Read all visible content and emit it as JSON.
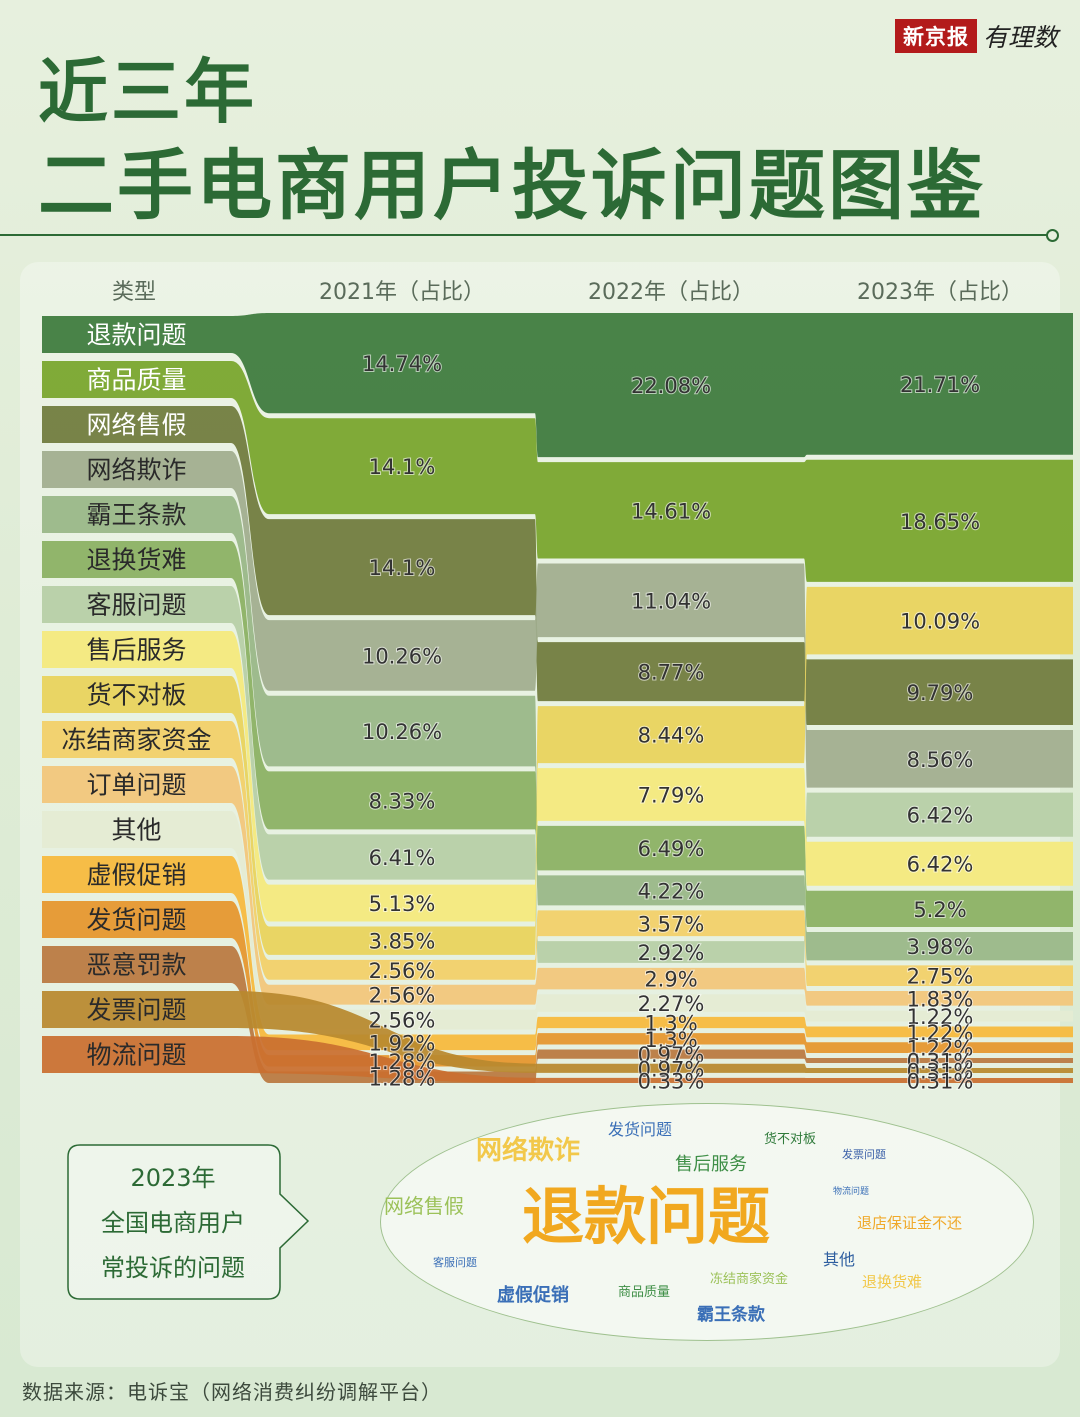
{
  "brand": {
    "name": "新京报",
    "sub": "有理数"
  },
  "title": {
    "line1": "近三年",
    "line2": "二手电商用户投诉问题图鉴"
  },
  "source": "数据来源：电诉宝（网络消费纠纷调解平台）",
  "callout": {
    "line1": "2023年",
    "line2": "全国电商用户",
    "line3": "常投诉的问题"
  },
  "colors": {
    "title": "#2c6a35",
    "accent": "#b31b1b"
  },
  "chart_data": {
    "type": "bump",
    "header": {
      "type_col": "类型",
      "years": [
        "2021年（占比）",
        "2022年（占比）",
        "2023年（占比）"
      ]
    },
    "series": [
      {
        "name": "退款问题",
        "color": "#3c7a3c",
        "values": [
          14.74,
          22.08,
          21.71
        ],
        "labels": [
          "14.74%",
          "22.08%",
          "21.71%"
        ]
      },
      {
        "name": "商品质量",
        "color": "#77a52b",
        "values": [
          14.1,
          14.61,
          18.65
        ],
        "labels": [
          "14.1%",
          "14.61%",
          "18.65%"
        ]
      },
      {
        "name": "网络售假",
        "color": "#6f7b3c",
        "values": [
          14.1,
          8.77,
          9.79
        ],
        "labels": [
          "14.1%",
          "8.77%",
          "9.79%"
        ]
      },
      {
        "name": "网络欺诈",
        "color": "#a0ad8e",
        "values": [
          10.26,
          11.04,
          8.56
        ],
        "labels": [
          "10.26%",
          "11.04%",
          "8.56%"
        ]
      },
      {
        "name": "霸王条款",
        "color": "#98b786",
        "values": [
          10.26,
          4.22,
          3.98
        ],
        "labels": [
          "10.26%",
          "4.22%",
          "3.98%"
        ]
      },
      {
        "name": "退换货难",
        "color": "#8ab062",
        "values": [
          8.33,
          6.49,
          5.2
        ],
        "labels": [
          "8.33%",
          "6.49%",
          "5.2%"
        ]
      },
      {
        "name": "客服问题",
        "color": "#b6cfa6",
        "values": [
          6.41,
          2.92,
          6.42
        ],
        "labels": [
          "6.41%",
          "2.92%",
          "6.42%"
        ]
      },
      {
        "name": "售后服务",
        "color": "#f4e97c",
        "values": [
          5.13,
          7.79,
          6.42
        ],
        "labels": [
          "5.13%",
          "7.79%",
          "6.42%"
        ]
      },
      {
        "name": "货不对板",
        "color": "#e8d35a",
        "values": [
          3.85,
          8.44,
          10.09
        ],
        "labels": [
          "3.85%",
          "8.44%",
          "10.09%"
        ]
      },
      {
        "name": "冻结商家资金",
        "color": "#f2d067",
        "values": [
          2.56,
          3.57,
          2.75
        ],
        "labels": [
          "2.56%",
          "3.57%",
          "2.75%"
        ]
      },
      {
        "name": "订单问题",
        "color": "#f2c67a",
        "values": [
          2.56,
          2.9,
          1.83
        ],
        "labels": [
          "2.56%",
          "2.9%",
          "1.83%"
        ]
      },
      {
        "name": "其他",
        "color": "#e4ecd3",
        "values": [
          2.56,
          2.27,
          1.22
        ],
        "labels": [
          "2.56%",
          "2.27%",
          "1.22%"
        ]
      },
      {
        "name": "虚假促销",
        "color": "#f6b93b",
        "values": [
          1.92,
          1.3,
          1.22
        ],
        "labels": [
          "1.92%",
          "1.3%",
          "1.22%"
        ]
      },
      {
        "name": "发货问题",
        "color": "#e5962c",
        "values": [
          1.28,
          1.3,
          1.22
        ],
        "labels": [
          "1.28%",
          "1.3%",
          "1.22%"
        ]
      },
      {
        "name": "恶意罚款",
        "color": "#b9793f",
        "values": [
          1.28,
          0.97,
          0.31
        ],
        "labels": [
          "1.28%",
          "0.97%",
          "0.31%"
        ]
      },
      {
        "name": "发票问题",
        "color": "#b8892e",
        "values": [
          null,
          0.97,
          0.31
        ],
        "labels": [
          "",
          "0.97%",
          "0.31%"
        ]
      },
      {
        "name": "物流问题",
        "color": "#c96f2f",
        "values": [
          null,
          0.33,
          0.31
        ],
        "labels": [
          "",
          "0.33%",
          "0.31%"
        ]
      }
    ],
    "legend": "left",
    "grid": false
  },
  "word_cloud": [
    {
      "text": "退款问题",
      "color": "#f1a81f",
      "weight": "bold"
    },
    {
      "text": "网络欺诈",
      "color": "#f2c84a",
      "weight": "bold"
    },
    {
      "text": "发货问题",
      "color": "#3a6fb7",
      "weight": "normal"
    },
    {
      "text": "货不对板",
      "color": "#2f7a3a",
      "weight": "normal"
    },
    {
      "text": "售后服务",
      "color": "#3f8f47",
      "weight": "normal"
    },
    {
      "text": "发票问题",
      "color": "#3a5fa8",
      "weight": "normal"
    },
    {
      "text": "网络售假",
      "color": "#9cc25a",
      "weight": "normal"
    },
    {
      "text": "物流问题",
      "color": "#3a6fb7",
      "weight": "normal"
    },
    {
      "text": "退店保证金不还",
      "color": "#f0a92a",
      "weight": "normal"
    },
    {
      "text": "客服问题",
      "color": "#3a6fb7",
      "weight": "normal"
    },
    {
      "text": "其他",
      "color": "#2f5fa0",
      "weight": "normal"
    },
    {
      "text": "冻结商家资金",
      "color": "#9cc25a",
      "weight": "normal"
    },
    {
      "text": "商品质量",
      "color": "#3f8f47",
      "weight": "normal"
    },
    {
      "text": "虚假促销",
      "color": "#3a6fb7",
      "weight": "bold"
    },
    {
      "text": "退换货难",
      "color": "#f2c84a",
      "weight": "normal"
    },
    {
      "text": "霸王条款",
      "color": "#3a6fb7",
      "weight": "bold"
    }
  ]
}
